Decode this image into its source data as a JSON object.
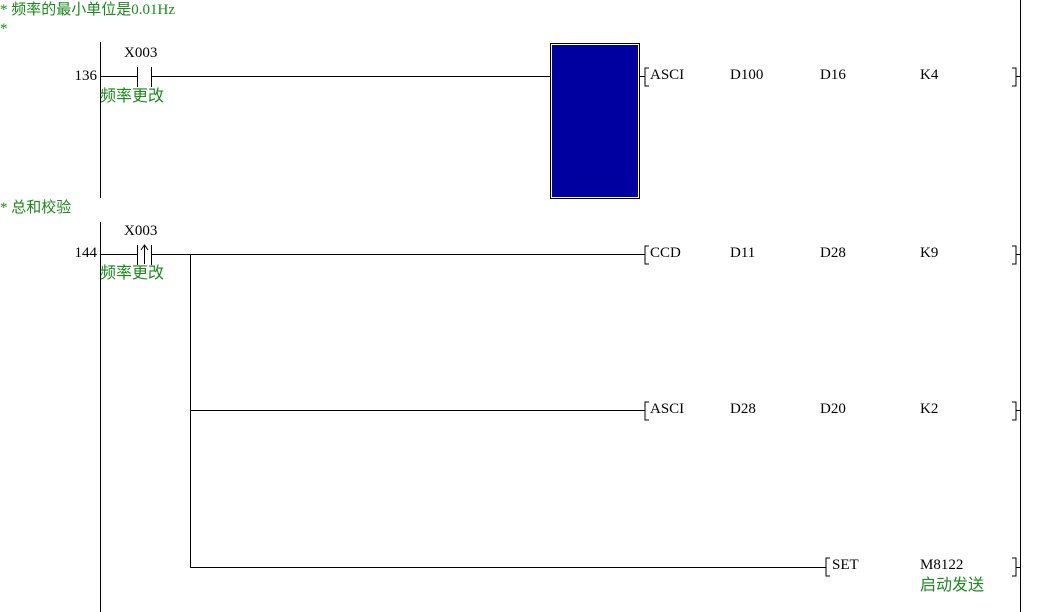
{
  "comments": [
    {
      "text": "* 频率的最小单位是0.01Hz"
    },
    {
      "text": "*"
    },
    {
      "text": "* 总和校验"
    }
  ],
  "rungs": [
    {
      "step": "136",
      "contact": {
        "device": "X003",
        "comment": "频率更改",
        "type": "normally-open"
      },
      "instructions": [
        {
          "op": "ASCI",
          "operands": [
            "D100",
            "D16",
            "K4"
          ]
        }
      ]
    },
    {
      "step": "144",
      "contact": {
        "device": "X003",
        "comment": "频率更改",
        "type": "rising-edge"
      },
      "instructions": [
        {
          "op": "CCD",
          "operands": [
            "D11",
            "D28",
            "K9"
          ]
        },
        {
          "op": "ASCI",
          "operands": [
            "D28",
            "D20",
            "K2"
          ]
        },
        {
          "op": "SET",
          "operands": [
            "M8122"
          ],
          "comment": "启动发送"
        }
      ]
    }
  ],
  "colors": {
    "comment": "#1a8a1a",
    "cursor": "#0000a0",
    "line": "#000000"
  }
}
